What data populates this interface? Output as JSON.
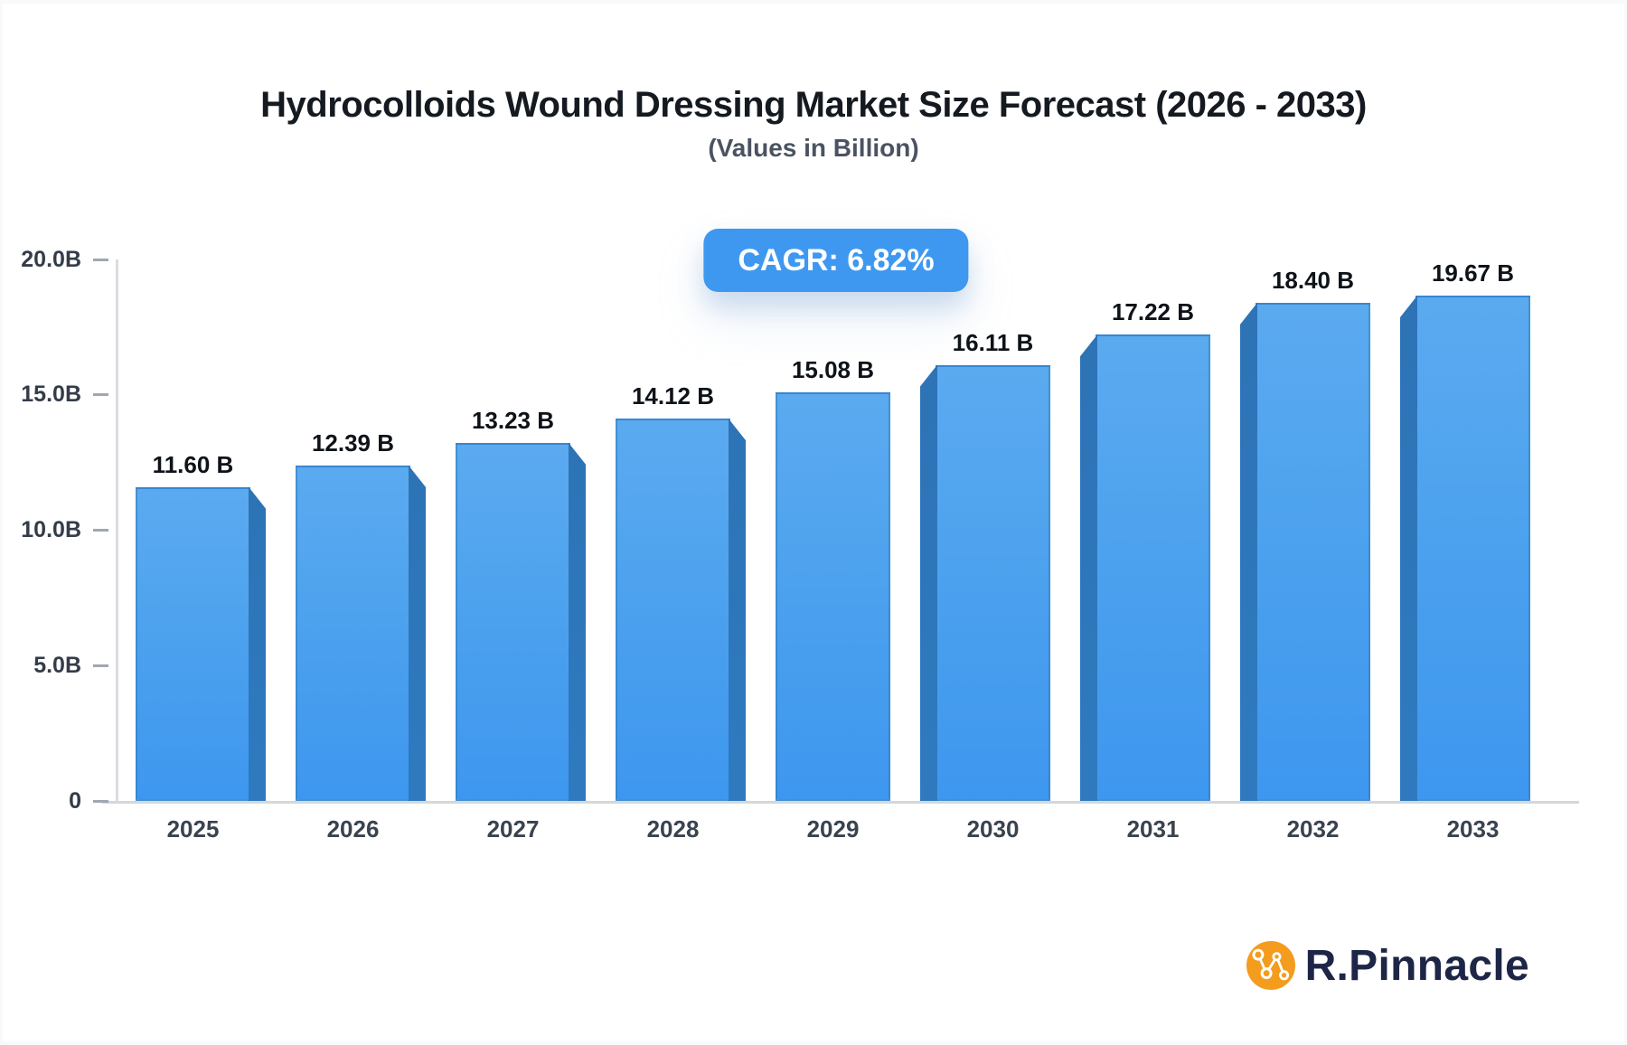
{
  "header": {
    "title": "Hydrocolloids Wound Dressing Market Size Forecast (2026 - 2033)",
    "subtitle": "(Values in Billion)"
  },
  "badge": {
    "label": "CAGR: 6.82%"
  },
  "chart_data": {
    "type": "bar",
    "title": "Hydrocolloids Wound Dressing Market Size Forecast (2026 - 2033)",
    "subtitle": "(Values in Billion)",
    "categories": [
      "2025",
      "2026",
      "2027",
      "2028",
      "2029",
      "2030",
      "2031",
      "2032",
      "2033"
    ],
    "values": [
      11.6,
      12.39,
      13.23,
      14.12,
      15.08,
      16.11,
      17.22,
      18.4,
      19.67
    ],
    "value_labels": [
      "11.60 B",
      "12.39 B",
      "13.23 B",
      "14.12 B",
      "15.08 B",
      "16.11 B",
      "17.22 B",
      "18.40 B",
      "19.67 B"
    ],
    "xlabel": "",
    "ylabel": "",
    "ylim": [
      0,
      20
    ],
    "yticks": [
      {
        "value": 20,
        "label": "20.0B"
      },
      {
        "value": 15,
        "label": "15.0B"
      },
      {
        "value": 10,
        "label": "10.0B"
      },
      {
        "value": 5,
        "label": "5.0B"
      },
      {
        "value": 0,
        "label": "0"
      }
    ],
    "grid": false,
    "legend_position": "none",
    "annotation": "CAGR: 6.82%"
  },
  "logo": {
    "text": "R.Pinnacle",
    "icon": "network-graph-icon"
  },
  "colors": {
    "accent_blue": "#3f98ef",
    "bar_face_top": "#5baaf0",
    "bar_face_bottom": "#3e97ef",
    "bar_side": "#2d74b8",
    "axis_line": "#d5d9dd",
    "tick_dash": "#a0a7b0",
    "tick_text": "#343c49",
    "year_text": "#3a434f",
    "value_text": "#0e1319",
    "title_text": "#151a21",
    "subtitle_text": "#4b5362",
    "badge_bg": "#3f98ef",
    "badge_text": "#ffffff",
    "logo_orange": "#f49c1d",
    "logo_navy": "#1e2647"
  }
}
